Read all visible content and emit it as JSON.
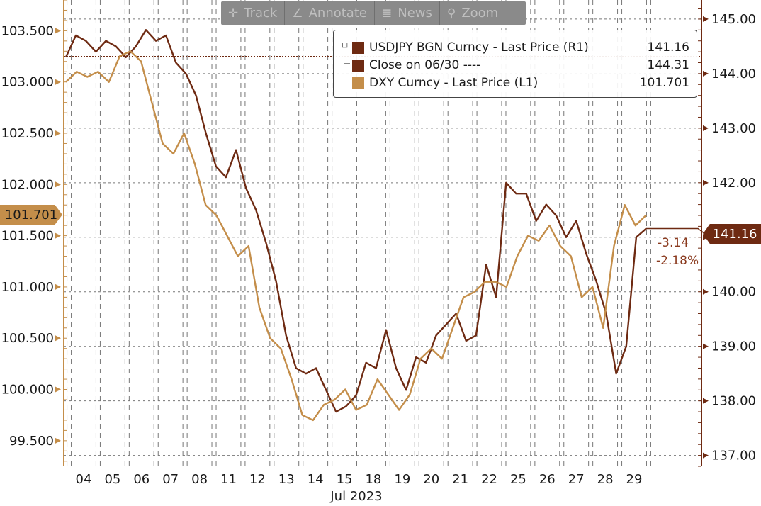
{
  "toolbar": {
    "track_label": "Track",
    "annotate_label": "Annotate",
    "news_label": "News",
    "zoom_label": "Zoom"
  },
  "legend": {
    "items": [
      {
        "label": "USDJPY BGN Curncy - Last Price (R1)",
        "value": "141.16",
        "color": "#6e2a12"
      },
      {
        "label": "Close on 06/30 ----",
        "value": "144.31",
        "color": "#6e2a12"
      },
      {
        "label": "DXY Curncy - Last Price (L1)",
        "value": "101.701",
        "color": "#c48e4a"
      }
    ]
  },
  "tags": {
    "left_value": "101.701",
    "right_value": "141.16",
    "change_abs": "-3.14",
    "change_pct": "-2.18%"
  },
  "chart_data": {
    "type": "line",
    "xlabel": "Jul 2023",
    "x_ticks": [
      "04",
      "05",
      "06",
      "07",
      "08",
      "11",
      "12",
      "13",
      "14",
      "15",
      "18",
      "19",
      "20",
      "21",
      "22",
      "25",
      "26",
      "27",
      "28",
      "29"
    ],
    "y_left": {
      "ticks": [
        "99.500",
        "100.000",
        "100.500",
        "101.000",
        "101.500",
        "102.000",
        "102.500",
        "103.000",
        "103.500"
      ],
      "min": 99.25,
      "max": 103.8
    },
    "y_right": {
      "ticks": [
        "137.00",
        "138.00",
        "139.00",
        "140.00",
        "141.00",
        "142.00",
        "143.00",
        "144.00",
        "145.00"
      ],
      "min": 136.8,
      "max": 145.35
    },
    "reference_line": {
      "name": "Close on 06/30",
      "value": 144.31,
      "axis": "right"
    },
    "series": [
      {
        "name": "USDJPY BGN Curncy - Last Price (R1)",
        "axis": "right",
        "color": "#6e2a12",
        "values": [
          144.3,
          144.7,
          144.6,
          144.4,
          144.6,
          144.5,
          144.3,
          144.5,
          144.8,
          144.6,
          144.7,
          144.2,
          144.0,
          143.6,
          142.9,
          142.3,
          142.1,
          142.6,
          141.9,
          141.5,
          140.9,
          140.2,
          139.2,
          138.6,
          138.5,
          138.6,
          138.2,
          137.8,
          137.9,
          138.1,
          138.7,
          138.6,
          139.3,
          138.6,
          138.2,
          138.8,
          138.7,
          139.2,
          139.4,
          139.6,
          139.1,
          139.2,
          140.5,
          139.9,
          142.0,
          141.8,
          141.8,
          141.3,
          141.6,
          141.4,
          141.0,
          141.3,
          140.7,
          140.2,
          139.6,
          138.5,
          139.0,
          141.0,
          141.16
        ]
      },
      {
        "name": "DXY Curncy - Last Price (L1)",
        "axis": "left",
        "color": "#c48e4a",
        "values": [
          103.0,
          103.1,
          103.05,
          103.1,
          103.0,
          103.25,
          103.3,
          103.2,
          102.8,
          102.4,
          102.3,
          102.5,
          102.2,
          101.8,
          101.7,
          101.5,
          101.3,
          101.4,
          100.8,
          100.5,
          100.4,
          100.1,
          99.75,
          99.7,
          99.85,
          99.9,
          100.0,
          99.8,
          99.85,
          100.1,
          99.95,
          99.8,
          99.95,
          100.3,
          100.4,
          100.3,
          100.6,
          100.9,
          100.95,
          101.05,
          101.05,
          101.0,
          101.3,
          101.5,
          101.45,
          101.6,
          101.4,
          101.3,
          100.9,
          101.0,
          100.6,
          101.4,
          101.8,
          101.6,
          101.701
        ]
      }
    ]
  }
}
